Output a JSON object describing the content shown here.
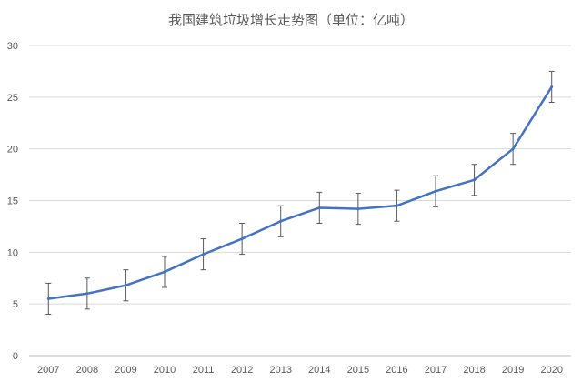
{
  "chart_data": {
    "type": "line",
    "title": "我国建筑垃圾增长走势图（单位：亿吨）",
    "xlabel": "",
    "ylabel": "",
    "categories": [
      "2007",
      "2008",
      "2009",
      "2010",
      "2011",
      "2012",
      "2013",
      "2014",
      "2015",
      "2016",
      "2017",
      "2018",
      "2019",
      "2020"
    ],
    "series": [
      {
        "values": [
          5.5,
          6.0,
          6.8,
          8.1,
          9.8,
          11.3,
          13.0,
          14.3,
          14.2,
          14.5,
          15.9,
          17.0,
          20.0,
          26.0
        ],
        "error": [
          1.5,
          1.5,
          1.5,
          1.5,
          1.5,
          1.5,
          1.5,
          1.5,
          1.5,
          1.5,
          1.5,
          1.5,
          1.5,
          1.5
        ],
        "color": "#4472c4"
      }
    ],
    "ylim": [
      0,
      30
    ],
    "yticks": [
      "0",
      "5",
      "10",
      "15",
      "20",
      "25",
      "30"
    ],
    "grid": true,
    "legend": "none"
  }
}
